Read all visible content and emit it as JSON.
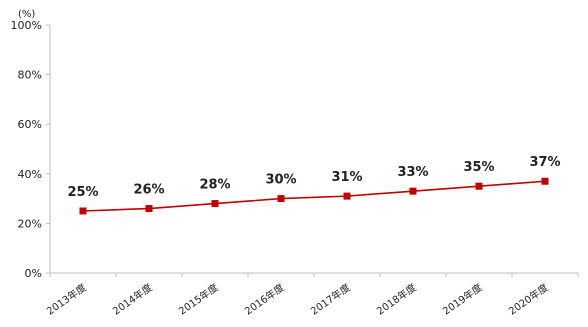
{
  "page": {
    "title_fragment": "",
    "unit_label": "(%)"
  },
  "chart_data": {
    "type": "line",
    "title": "",
    "xlabel": "",
    "ylabel": "(%)",
    "categories": [
      "2013年度",
      "2014年度",
      "2015年度",
      "2016年度",
      "2017年度",
      "2018年度",
      "2019年度",
      "2020年度"
    ],
    "series": [
      {
        "values": [
          25,
          26,
          28,
          30,
          31,
          33,
          35,
          37
        ],
        "color": "#c00000"
      }
    ],
    "data_labels": [
      "25%",
      "26%",
      "28%",
      "30%",
      "31%",
      "33%",
      "35%",
      "37%"
    ],
    "ylim": [
      0,
      100
    ],
    "yticks": [
      0,
      20,
      40,
      60,
      80,
      100
    ],
    "ytick_labels": [
      "0%",
      "20%",
      "40%",
      "60%",
      "80%",
      "100%"
    ],
    "grid": false,
    "legend": "none",
    "colors": {
      "line": "#c00000",
      "marker": "#c00000",
      "axis": "#bfbfbf",
      "text": "#222222"
    }
  }
}
